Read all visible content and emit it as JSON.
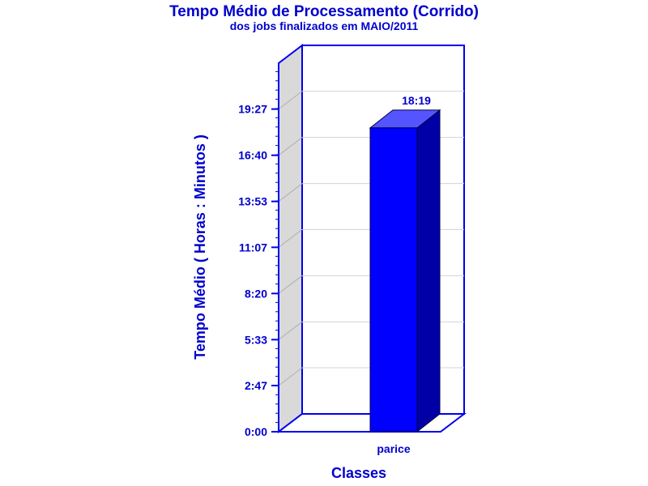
{
  "chart_data": {
    "type": "bar",
    "title": "Tempo Médio de Processamento (Corrido)",
    "subtitle": "dos jobs finalizados em MAIO/2011",
    "xlabel": "Classes",
    "ylabel": "Tempo Médio ( Horas : Minutos )",
    "categories": [
      "parice"
    ],
    "values": [
      "18:19"
    ],
    "value_labels": [
      "18:19"
    ],
    "yticks": [
      "0:00",
      "2:47",
      "5:33",
      "8:20",
      "11:07",
      "13:53",
      "16:40",
      "19:27"
    ],
    "ylim": [
      "0:00",
      "22:13"
    ],
    "grid": true,
    "legend": "none",
    "style": "3d",
    "colors": {
      "text": "#0000cc",
      "frame": "#0000ee",
      "bar_front": "#0000ff",
      "bar_top": "#5555ff",
      "bar_side": "#0000a6",
      "wall": "#d9d9d9",
      "grid": "#d3d3d3"
    }
  }
}
